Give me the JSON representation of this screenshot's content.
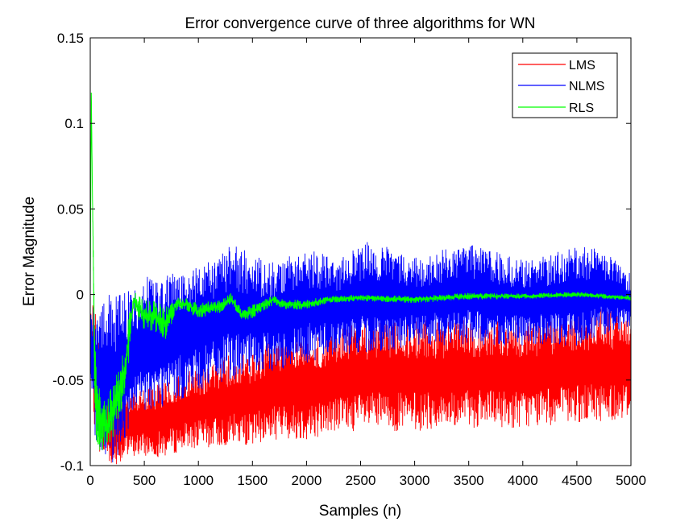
{
  "chart_data": {
    "type": "line",
    "title": "Error convergence curve of three algorithms for WN",
    "xlabel": "Samples (n)",
    "ylabel": "Error Magnitude",
    "xlim": [
      0,
      5000
    ],
    "ylim": [
      -0.1,
      0.15
    ],
    "xticks": [
      0,
      500,
      1000,
      1500,
      2000,
      2500,
      3000,
      3500,
      4000,
      4500,
      5000
    ],
    "yticks": [
      -0.1,
      -0.05,
      0,
      0.05,
      0.1,
      0.15
    ],
    "xtick_labels": [
      "0",
      "500",
      "1000",
      "1500",
      "2000",
      "2500",
      "3000",
      "3500",
      "4000",
      "4500",
      "5000"
    ],
    "ytick_labels": [
      "-0.1",
      "-0.05",
      "0",
      "0.05",
      "0.1",
      "0.15"
    ],
    "grid": false,
    "legend_position": "top-right",
    "series": [
      {
        "name": "LMS",
        "color": "#ff0000",
        "x": [
          0,
          50,
          100,
          200,
          300,
          400,
          500,
          700,
          900,
          1100,
          1300,
          1500,
          1700,
          2000,
          2300,
          2600,
          3000,
          3500,
          4000,
          4500,
          4700,
          5000
        ],
        "upper": [
          0.0,
          -0.01,
          -0.04,
          -0.05,
          -0.055,
          -0.055,
          -0.055,
          -0.05,
          -0.045,
          -0.04,
          -0.035,
          -0.035,
          -0.025,
          -0.025,
          -0.02,
          -0.015,
          -0.015,
          -0.015,
          -0.015,
          -0.012,
          -0.008,
          -0.012
        ],
        "lower": [
          -0.05,
          -0.085,
          -0.095,
          -0.1,
          -0.098,
          -0.095,
          -0.095,
          -0.095,
          -0.09,
          -0.09,
          -0.088,
          -0.088,
          -0.085,
          -0.085,
          -0.08,
          -0.08,
          -0.08,
          -0.078,
          -0.078,
          -0.075,
          -0.075,
          -0.072
        ]
      },
      {
        "name": "NLMS",
        "color": "#0000ff",
        "x": [
          0,
          50,
          100,
          200,
          300,
          400,
          500,
          700,
          900,
          1100,
          1300,
          1500,
          1700,
          2000,
          2300,
          2600,
          3000,
          3500,
          4000,
          4500,
          4700,
          5000
        ],
        "upper": [
          -0.01,
          -0.005,
          0.0,
          0.0,
          0.0,
          0.005,
          0.01,
          0.012,
          0.015,
          0.02,
          0.03,
          0.025,
          0.02,
          0.027,
          0.022,
          0.032,
          0.022,
          0.03,
          0.02,
          0.028,
          0.028,
          0.012
        ],
        "lower": [
          -0.05,
          -0.095,
          -0.098,
          -0.1,
          -0.09,
          -0.075,
          -0.07,
          -0.065,
          -0.06,
          -0.055,
          -0.05,
          -0.048,
          -0.045,
          -0.04,
          -0.035,
          -0.035,
          -0.03,
          -0.03,
          -0.03,
          -0.03,
          -0.025,
          -0.02
        ]
      },
      {
        "name": "RLS",
        "color": "#00ff00",
        "x": [
          0,
          10,
          20,
          40,
          60,
          100,
          150,
          200,
          250,
          300,
          350,
          400,
          500,
          600,
          700,
          800,
          900,
          1000,
          1100,
          1200,
          1300,
          1400,
          1500,
          1700,
          1800,
          2000,
          2200,
          2500,
          3000,
          3500,
          4000,
          4500,
          5000
        ],
        "values": [
          0.0,
          0.118,
          0.06,
          -0.04,
          -0.07,
          -0.075,
          -0.078,
          -0.07,
          -0.06,
          -0.05,
          -0.03,
          -0.004,
          -0.012,
          -0.013,
          -0.017,
          -0.005,
          -0.006,
          -0.01,
          -0.008,
          -0.007,
          -0.002,
          -0.012,
          -0.01,
          -0.003,
          -0.006,
          -0.006,
          -0.003,
          -0.002,
          -0.003,
          -0.001,
          -0.001,
          0.0,
          -0.002
        ],
        "band": [
          0.0,
          0.0,
          0.0,
          0.02,
          0.02,
          0.018,
          0.018,
          0.016,
          0.015,
          0.015,
          0.015,
          0.006,
          0.009,
          0.009,
          0.01,
          0.004,
          0.004,
          0.005,
          0.004,
          0.004,
          0.003,
          0.004,
          0.004,
          0.003,
          0.003,
          0.003,
          0.002,
          0.002,
          0.002,
          0.002,
          0.0015,
          0.0015,
          0.0015
        ]
      }
    ]
  }
}
